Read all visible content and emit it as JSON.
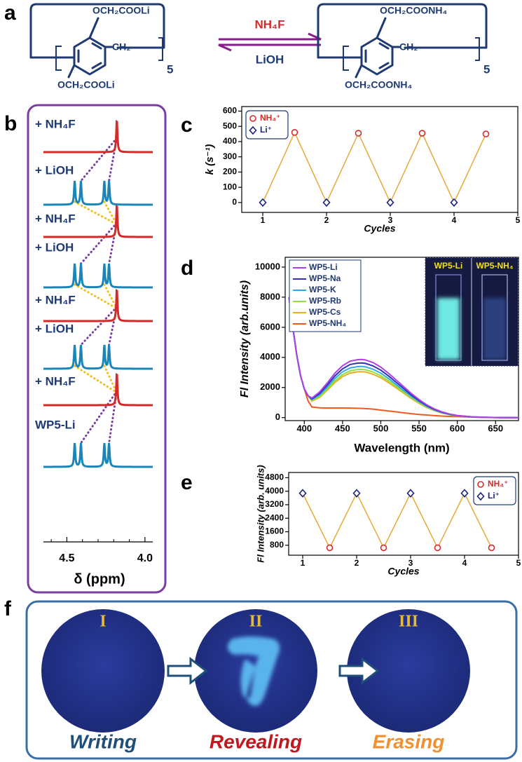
{
  "panel_labels": [
    "a",
    "b",
    "c",
    "d",
    "e",
    "f"
  ],
  "scheme": {
    "left": {
      "top": "OCH₂COOLi",
      "side": "CH₂",
      "bottom": "OCH₂COOLi",
      "repeat": "5"
    },
    "forward": "NH₄F",
    "backward": "LiOH",
    "right": {
      "top": "OCH₂COONH₄",
      "side": "CH₂",
      "bottom": "OCH₂COONH₄",
      "repeat": "5"
    }
  },
  "chart_data": [
    {
      "type": "nmr",
      "xlabel": "δ (ppm)",
      "xlim": [
        4.65,
        3.95
      ],
      "xticks": [
        4.5,
        {
          "value": 4,
          "label": "4.0"
        }
      ],
      "minor_xticks": [
        4.6,
        4.4,
        4.3,
        4.2,
        4.1
      ],
      "spectra": [
        {
          "label": "+ NH₄F",
          "color": "#d42a2a",
          "peaks": [
            4.18
          ]
        },
        {
          "label": "+ LiOH",
          "color": "#1a86b8",
          "peaks": [
            4.45,
            4.41,
            4.26,
            4.23
          ]
        },
        {
          "label": "+ NH₄F",
          "color": "#d42a2a",
          "peaks": [
            4.18
          ]
        },
        {
          "label": "+ LiOH",
          "color": "#1a86b8",
          "peaks": [
            4.45,
            4.41,
            4.26,
            4.23
          ]
        },
        {
          "label": "+ NH₄F",
          "color": "#d42a2a",
          "peaks": [
            4.18
          ]
        },
        {
          "label": "+ LiOH",
          "color": "#1a86b8",
          "peaks": [
            4.45,
            4.41,
            4.26,
            4.23
          ]
        },
        {
          "label": "+ NH₄F",
          "color": "#d42a2a",
          "peaks": [
            4.18
          ]
        },
        {
          "label": "WP5-Li",
          "color": "#1a86b8",
          "peaks": [
            4.45,
            4.41,
            4.26,
            4.23
          ]
        }
      ]
    },
    {
      "type": "cycle",
      "ylabel": "k (s⁻¹)",
      "xlabel": "Cycles",
      "xlim": [
        0.67,
        5
      ],
      "ylim": [
        -65,
        630
      ],
      "xticks": [
        1,
        2,
        3,
        4,
        5
      ],
      "yticks": [
        0,
        100,
        200,
        300,
        400,
        500,
        600
      ],
      "line_color": "#e8a838",
      "legend": "top-left",
      "series": [
        {
          "name": "NH₄⁺",
          "color": "#d42a2a",
          "marker": "circle",
          "x": [
            1.5,
            2.5,
            3.5,
            4.5
          ],
          "values": [
            460,
            455,
            455,
            450
          ]
        },
        {
          "name": "Li⁺",
          "color": "#1a237e",
          "marker": "diamond",
          "x": [
            1,
            2,
            3,
            4
          ],
          "values": [
            0,
            0,
            0,
            0
          ]
        }
      ]
    },
    {
      "type": "line",
      "ylabel": "Fl Intensity (arb.units)",
      "xlabel": "Wavelength (nm)",
      "xlim": [
        375,
        680
      ],
      "ylim": [
        -200,
        10650
      ],
      "xticks": [
        400,
        450,
        500,
        550,
        600,
        650
      ],
      "yticks": [
        0,
        2000,
        4000,
        6000,
        8000,
        10000
      ],
      "legend": "top-left",
      "inset_labels": [
        "WP5-Li",
        "WP5-NH₄"
      ],
      "x": [
        380,
        385,
        390,
        395,
        400,
        405,
        410,
        420,
        430,
        440,
        450,
        460,
        470,
        475,
        480,
        490,
        500,
        510,
        520,
        530,
        540,
        550,
        560,
        570,
        580,
        590,
        600,
        620,
        640,
        660,
        680
      ],
      "series": [
        {
          "name": "WP5-Li",
          "color": "#b040e8",
          "values": [
            8000,
            6000,
            4200,
            2800,
            1900,
            1450,
            1300,
            1700,
            2300,
            2950,
            3450,
            3750,
            3850,
            3860,
            3830,
            3650,
            3350,
            2950,
            2500,
            2050,
            1600,
            1200,
            850,
            580,
            380,
            240,
            140,
            50,
            15,
            0,
            0
          ]
        },
        {
          "name": "WP5-Na",
          "color": "#3030b8",
          "values": [
            8000,
            6000,
            4200,
            2800,
            1900,
            1450,
            1250,
            1600,
            2160,
            2770,
            3240,
            3530,
            3620,
            3630,
            3600,
            3430,
            3150,
            2770,
            2350,
            1930,
            1500,
            1130,
            800,
            545,
            357,
            226,
            132,
            47,
            14,
            0,
            0
          ]
        },
        {
          "name": "WP5-K",
          "color": "#30a8e8",
          "values": [
            8000,
            6000,
            4200,
            2800,
            1900,
            1450,
            1200,
            1500,
            2020,
            2600,
            3040,
            3300,
            3390,
            3400,
            3370,
            3210,
            2950,
            2600,
            2200,
            1800,
            1410,
            1060,
            750,
            510,
            335,
            210,
            123,
            44,
            13,
            0,
            0
          ]
        },
        {
          "name": "WP5-Rb",
          "color": "#90e040",
          "values": [
            8000,
            6000,
            4200,
            2800,
            1900,
            1450,
            1150,
            1410,
            1910,
            2450,
            2860,
            3110,
            3200,
            3200,
            3180,
            3030,
            2780,
            2450,
            2080,
            1700,
            1330,
            1000,
            705,
            480,
            315,
            200,
            116,
            42,
            12,
            0,
            0
          ]
        },
        {
          "name": "WP5-Cs",
          "color": "#e8b020",
          "values": [
            8000,
            6000,
            4200,
            2800,
            1900,
            1450,
            1100,
            1340,
            1820,
            2330,
            2730,
            2960,
            3040,
            3050,
            3030,
            2880,
            2650,
            2330,
            1980,
            1620,
            1260,
            950,
            670,
            460,
            300,
            190,
            110,
            40,
            12,
            0,
            0
          ]
        },
        {
          "name": "WP5-NH₄",
          "color": "#f05a20",
          "values": [
            8000,
            6000,
            4200,
            2800,
            1900,
            1100,
            700,
            650,
            640,
            640,
            640,
            630,
            620,
            610,
            600,
            560,
            500,
            440,
            380,
            320,
            260,
            210,
            170,
            130,
            100,
            80,
            60,
            30,
            10,
            0,
            0
          ]
        }
      ]
    },
    {
      "type": "cycle",
      "ylabel": "Fl Intensity (arb. units)",
      "xlabel": "Cycles",
      "xlim": [
        0.74,
        5
      ],
      "ylim": [
        210,
        5110
      ],
      "xticks": [
        1,
        2,
        3,
        4,
        5
      ],
      "yticks": [
        800,
        1600,
        2400,
        3200,
        4000,
        4800
      ],
      "line_color": "#e8a838",
      "legend": "top-right",
      "series": [
        {
          "name": "NH₄⁺",
          "color": "#d42a2a",
          "marker": "circle",
          "x": [
            1.5,
            2.5,
            3.5,
            4.5
          ],
          "values": [
            650,
            650,
            650,
            650
          ]
        },
        {
          "name": "Li⁺",
          "color": "#1a237e",
          "marker": "diamond",
          "x": [
            1,
            2,
            3,
            4
          ],
          "values": [
            3880,
            3880,
            3880,
            3880
          ]
        }
      ]
    }
  ],
  "writing": {
    "stages": [
      {
        "numeral": "I",
        "caption": "Writing",
        "color": "#1f4e79"
      },
      {
        "numeral": "II",
        "caption": "Revealing",
        "color": "#c0181e"
      },
      {
        "numeral": "III",
        "caption": "Erasing",
        "color": "#f09030"
      }
    ]
  }
}
